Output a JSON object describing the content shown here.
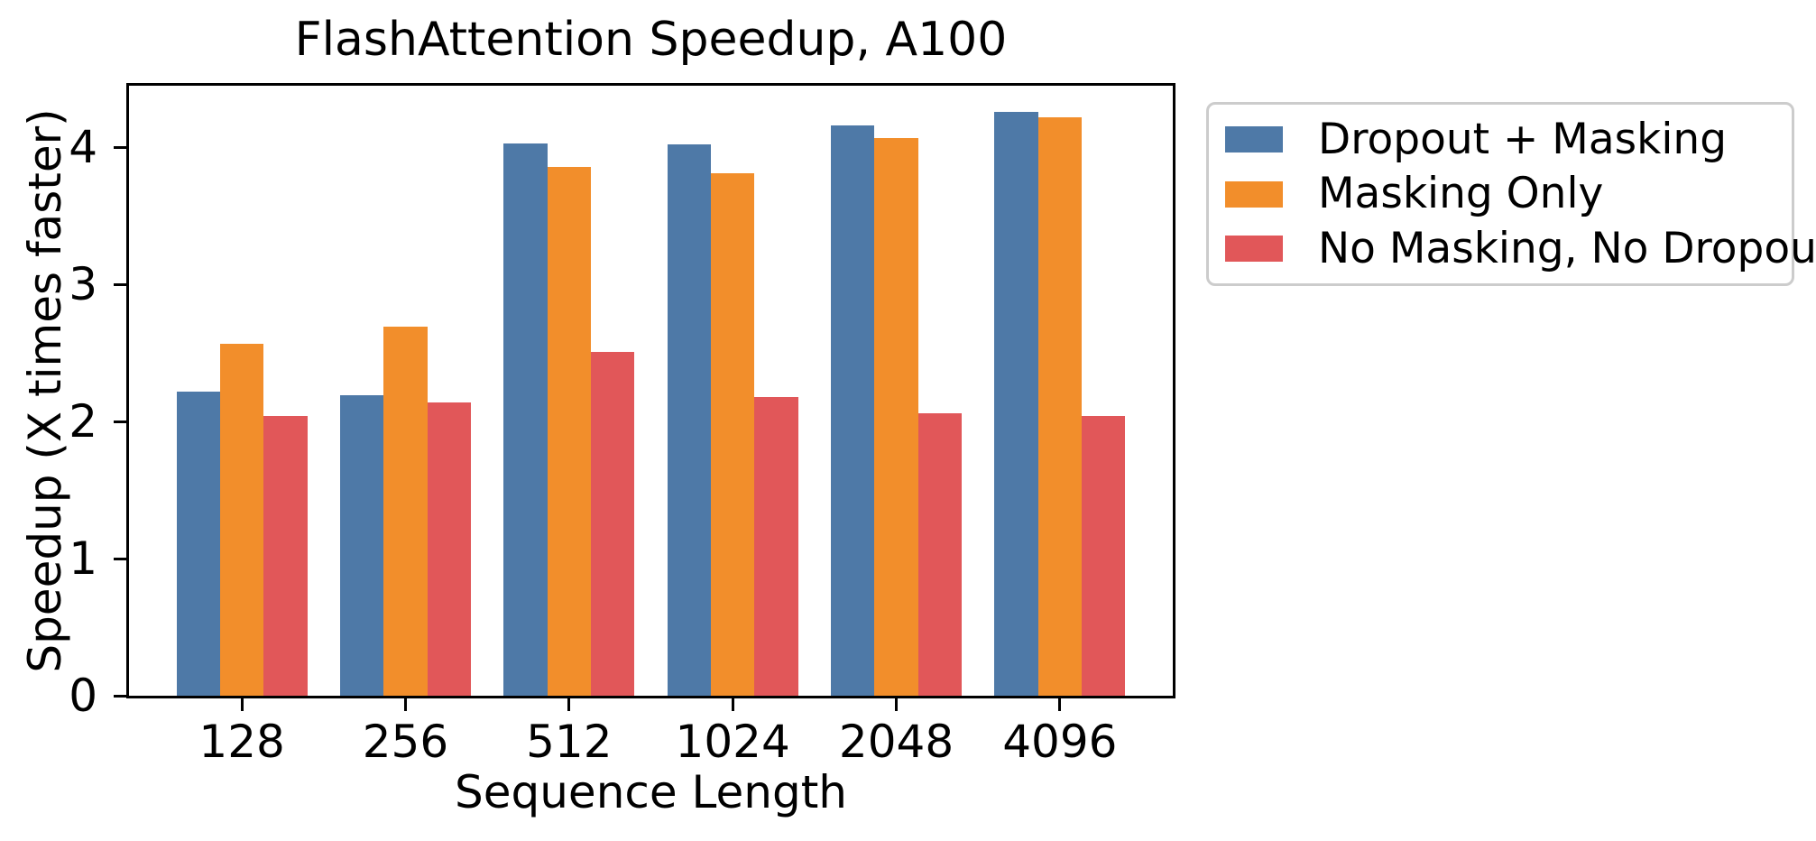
{
  "chart_data": {
    "type": "bar",
    "title": "FlashAttention Speedup, A100",
    "xlabel": "Sequence Length",
    "ylabel": "Speedup (X times faster)",
    "categories": [
      "128",
      "256",
      "512",
      "1024",
      "2048",
      "4096"
    ],
    "series": [
      {
        "name": "Dropout + Masking",
        "color": "#4E79A7",
        "values": [
          2.22,
          2.19,
          4.03,
          4.02,
          4.16,
          4.26
        ]
      },
      {
        "name": "Masking Only",
        "color": "#F28E2B",
        "values": [
          2.57,
          2.69,
          3.86,
          3.81,
          4.07,
          4.22
        ]
      },
      {
        "name": "No Masking, No Dropout",
        "color": "#E15759",
        "values": [
          2.04,
          2.14,
          2.51,
          2.18,
          2.06,
          2.04
        ]
      }
    ],
    "yticks": [
      0,
      1,
      2,
      3,
      4
    ],
    "ylim": [
      0,
      4.45
    ],
    "grid": false,
    "legend_position": "outside upper right",
    "bar_group_width": 0.8,
    "axis_color": "#000000",
    "legend_border_color": "#cccccc"
  }
}
